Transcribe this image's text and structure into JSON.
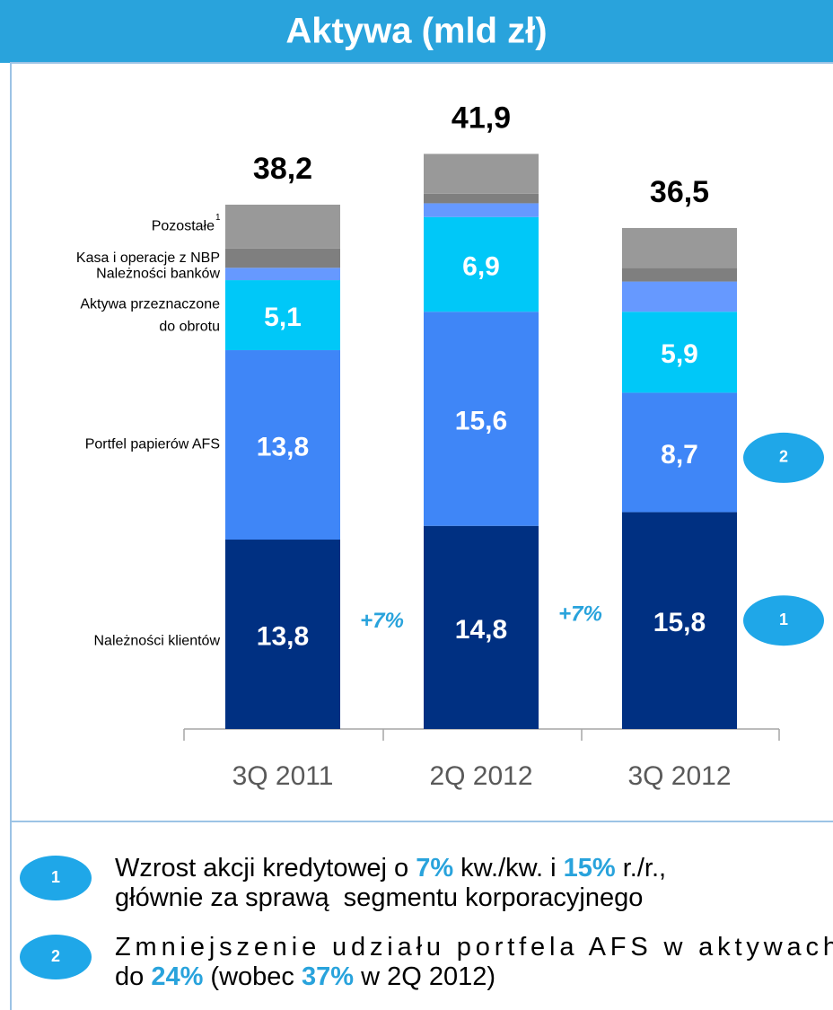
{
  "chart_data": {
    "type": "stacked_bar",
    "title": "Aktywa (mld zł)",
    "categories": [
      "3Q 2011",
      "2Q 2012",
      "3Q 2012"
    ],
    "ylim": [
      0,
      45
    ],
    "series": [
      {
        "name": "Należności klientów",
        "color": "#003082",
        "values": [
          13.8,
          14.8,
          15.8
        ],
        "value_labels": [
          "13,8",
          "14,8",
          "15,8"
        ]
      },
      {
        "name": "Portfel papierów AFS",
        "color": "#3f86f7",
        "values": [
          13.8,
          15.6,
          8.7
        ],
        "value_labels": [
          "13,8",
          "15,6",
          "8,7"
        ]
      },
      {
        "name": "Aktywa przeznaczone do obrotu",
        "color": "#00c8f8",
        "values": [
          5.1,
          6.9,
          5.9
        ],
        "value_labels": [
          "5,1",
          "6,9",
          "5,9"
        ]
      },
      {
        "name": "Należności banków",
        "color": "#6699ff",
        "values": [
          0.9,
          1.0,
          2.2
        ]
      },
      {
        "name": "Kasa i operacje z NBP",
        "color": "#7f7f7f",
        "values": [
          1.4,
          0.7,
          1.0
        ]
      },
      {
        "name": "Pozostałe",
        "footnote": "1",
        "color": "#999999",
        "values": [
          3.2,
          2.9,
          2.9
        ]
      }
    ],
    "totals": [
      38.2,
      41.9,
      36.5
    ],
    "total_labels": [
      "38,2",
      "41,9",
      "36,5"
    ],
    "growth_labels": [
      "+7%",
      "+7%"
    ],
    "callouts": [
      "2",
      "1"
    ],
    "notes": [
      {
        "badge": "1",
        "lines": [
          [
            {
              "text": "Wzrost akcji kredytowej o "
            },
            {
              "text": "7%",
              "highlight": true
            },
            {
              "text": " kw./kw. i "
            },
            {
              "text": "15%",
              "highlight": true
            },
            {
              "text": " r./r.,"
            }
          ],
          [
            {
              "text": "głównie za sprawą  segmentu korporacyjnego"
            }
          ]
        ]
      },
      {
        "badge": "2",
        "lines": [
          [
            {
              "text": "Zmniejszenie udziału portfela AFS w aktywach"
            }
          ],
          [
            {
              "text": "do "
            },
            {
              "text": "24%",
              "highlight": true
            },
            {
              "text": " (wobec "
            },
            {
              "text": "37%",
              "highlight": true
            },
            {
              "text": " w 2Q 2012)"
            }
          ]
        ]
      }
    ]
  }
}
